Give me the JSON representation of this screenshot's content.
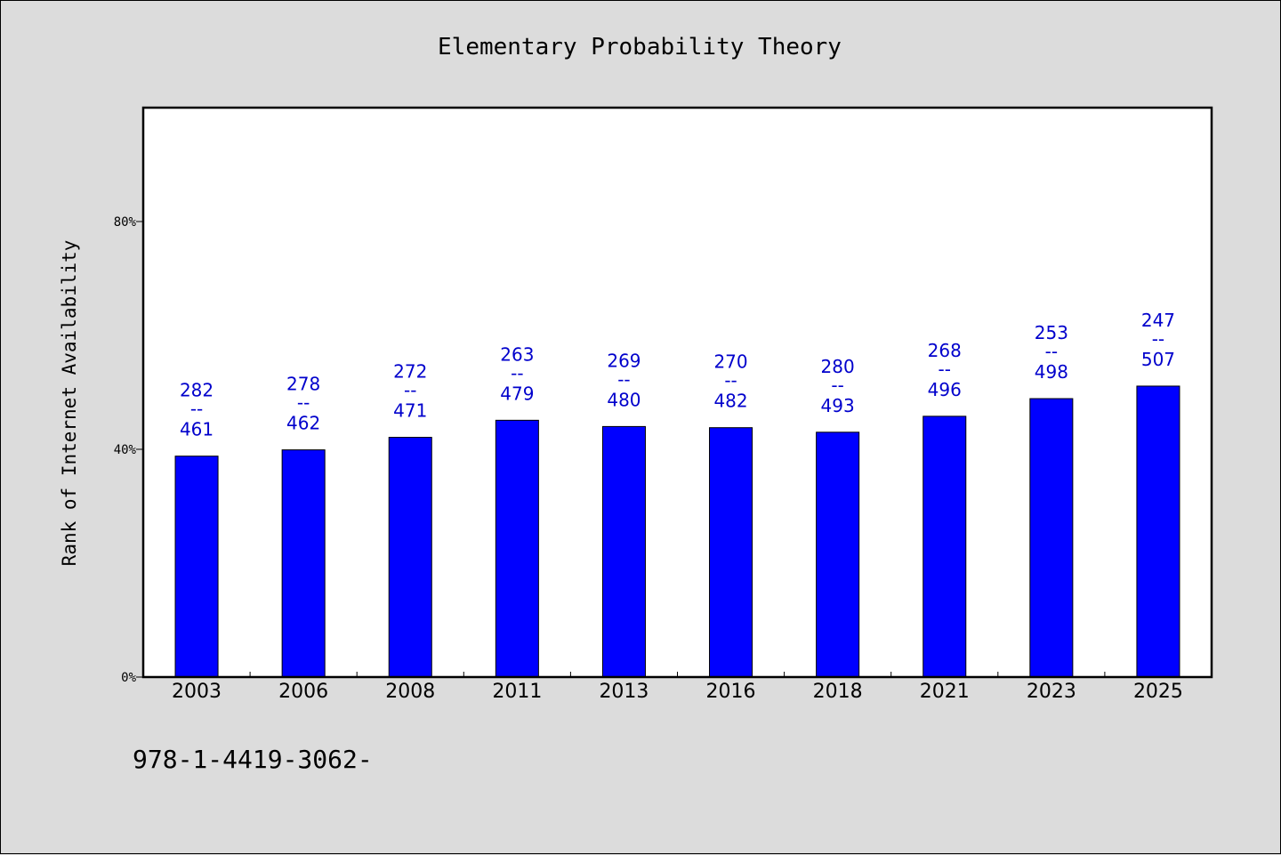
{
  "chart_data": {
    "type": "bar",
    "title": "Elementary Probability Theory",
    "ylabel": "Rank of Internet Availability",
    "xlabel": "",
    "ylim": [
      0,
      100
    ],
    "yticks": [
      {
        "value": 0,
        "label": "0%"
      },
      {
        "value": 40,
        "label": "40%"
      },
      {
        "value": 80,
        "label": "80%"
      }
    ],
    "categories": [
      "2003",
      "2006",
      "2008",
      "2011",
      "2013",
      "2016",
      "2018",
      "2021",
      "2023",
      "2025"
    ],
    "values": [
      38.8,
      39.9,
      42.1,
      45.1,
      44.0,
      43.8,
      43.0,
      45.8,
      48.9,
      51.1
    ],
    "data_labels": [
      {
        "top": "282",
        "sep": "--",
        "bottom": "461"
      },
      {
        "top": "278",
        "sep": "--",
        "bottom": "462"
      },
      {
        "top": "272",
        "sep": "--",
        "bottom": "471"
      },
      {
        "top": "263",
        "sep": "--",
        "bottom": "479"
      },
      {
        "top": "269",
        "sep": "--",
        "bottom": "480"
      },
      {
        "top": "270",
        "sep": "--",
        "bottom": "482"
      },
      {
        "top": "280",
        "sep": "--",
        "bottom": "493"
      },
      {
        "top": "268",
        "sep": "--",
        "bottom": "496"
      },
      {
        "top": "253",
        "sep": "--",
        "bottom": "498"
      },
      {
        "top": "247",
        "sep": "--",
        "bottom": "507"
      }
    ],
    "bar_color": "#0000ff",
    "label_color": "#0000cc",
    "grid": false
  },
  "footer_text": "978-1-4419-3062-"
}
